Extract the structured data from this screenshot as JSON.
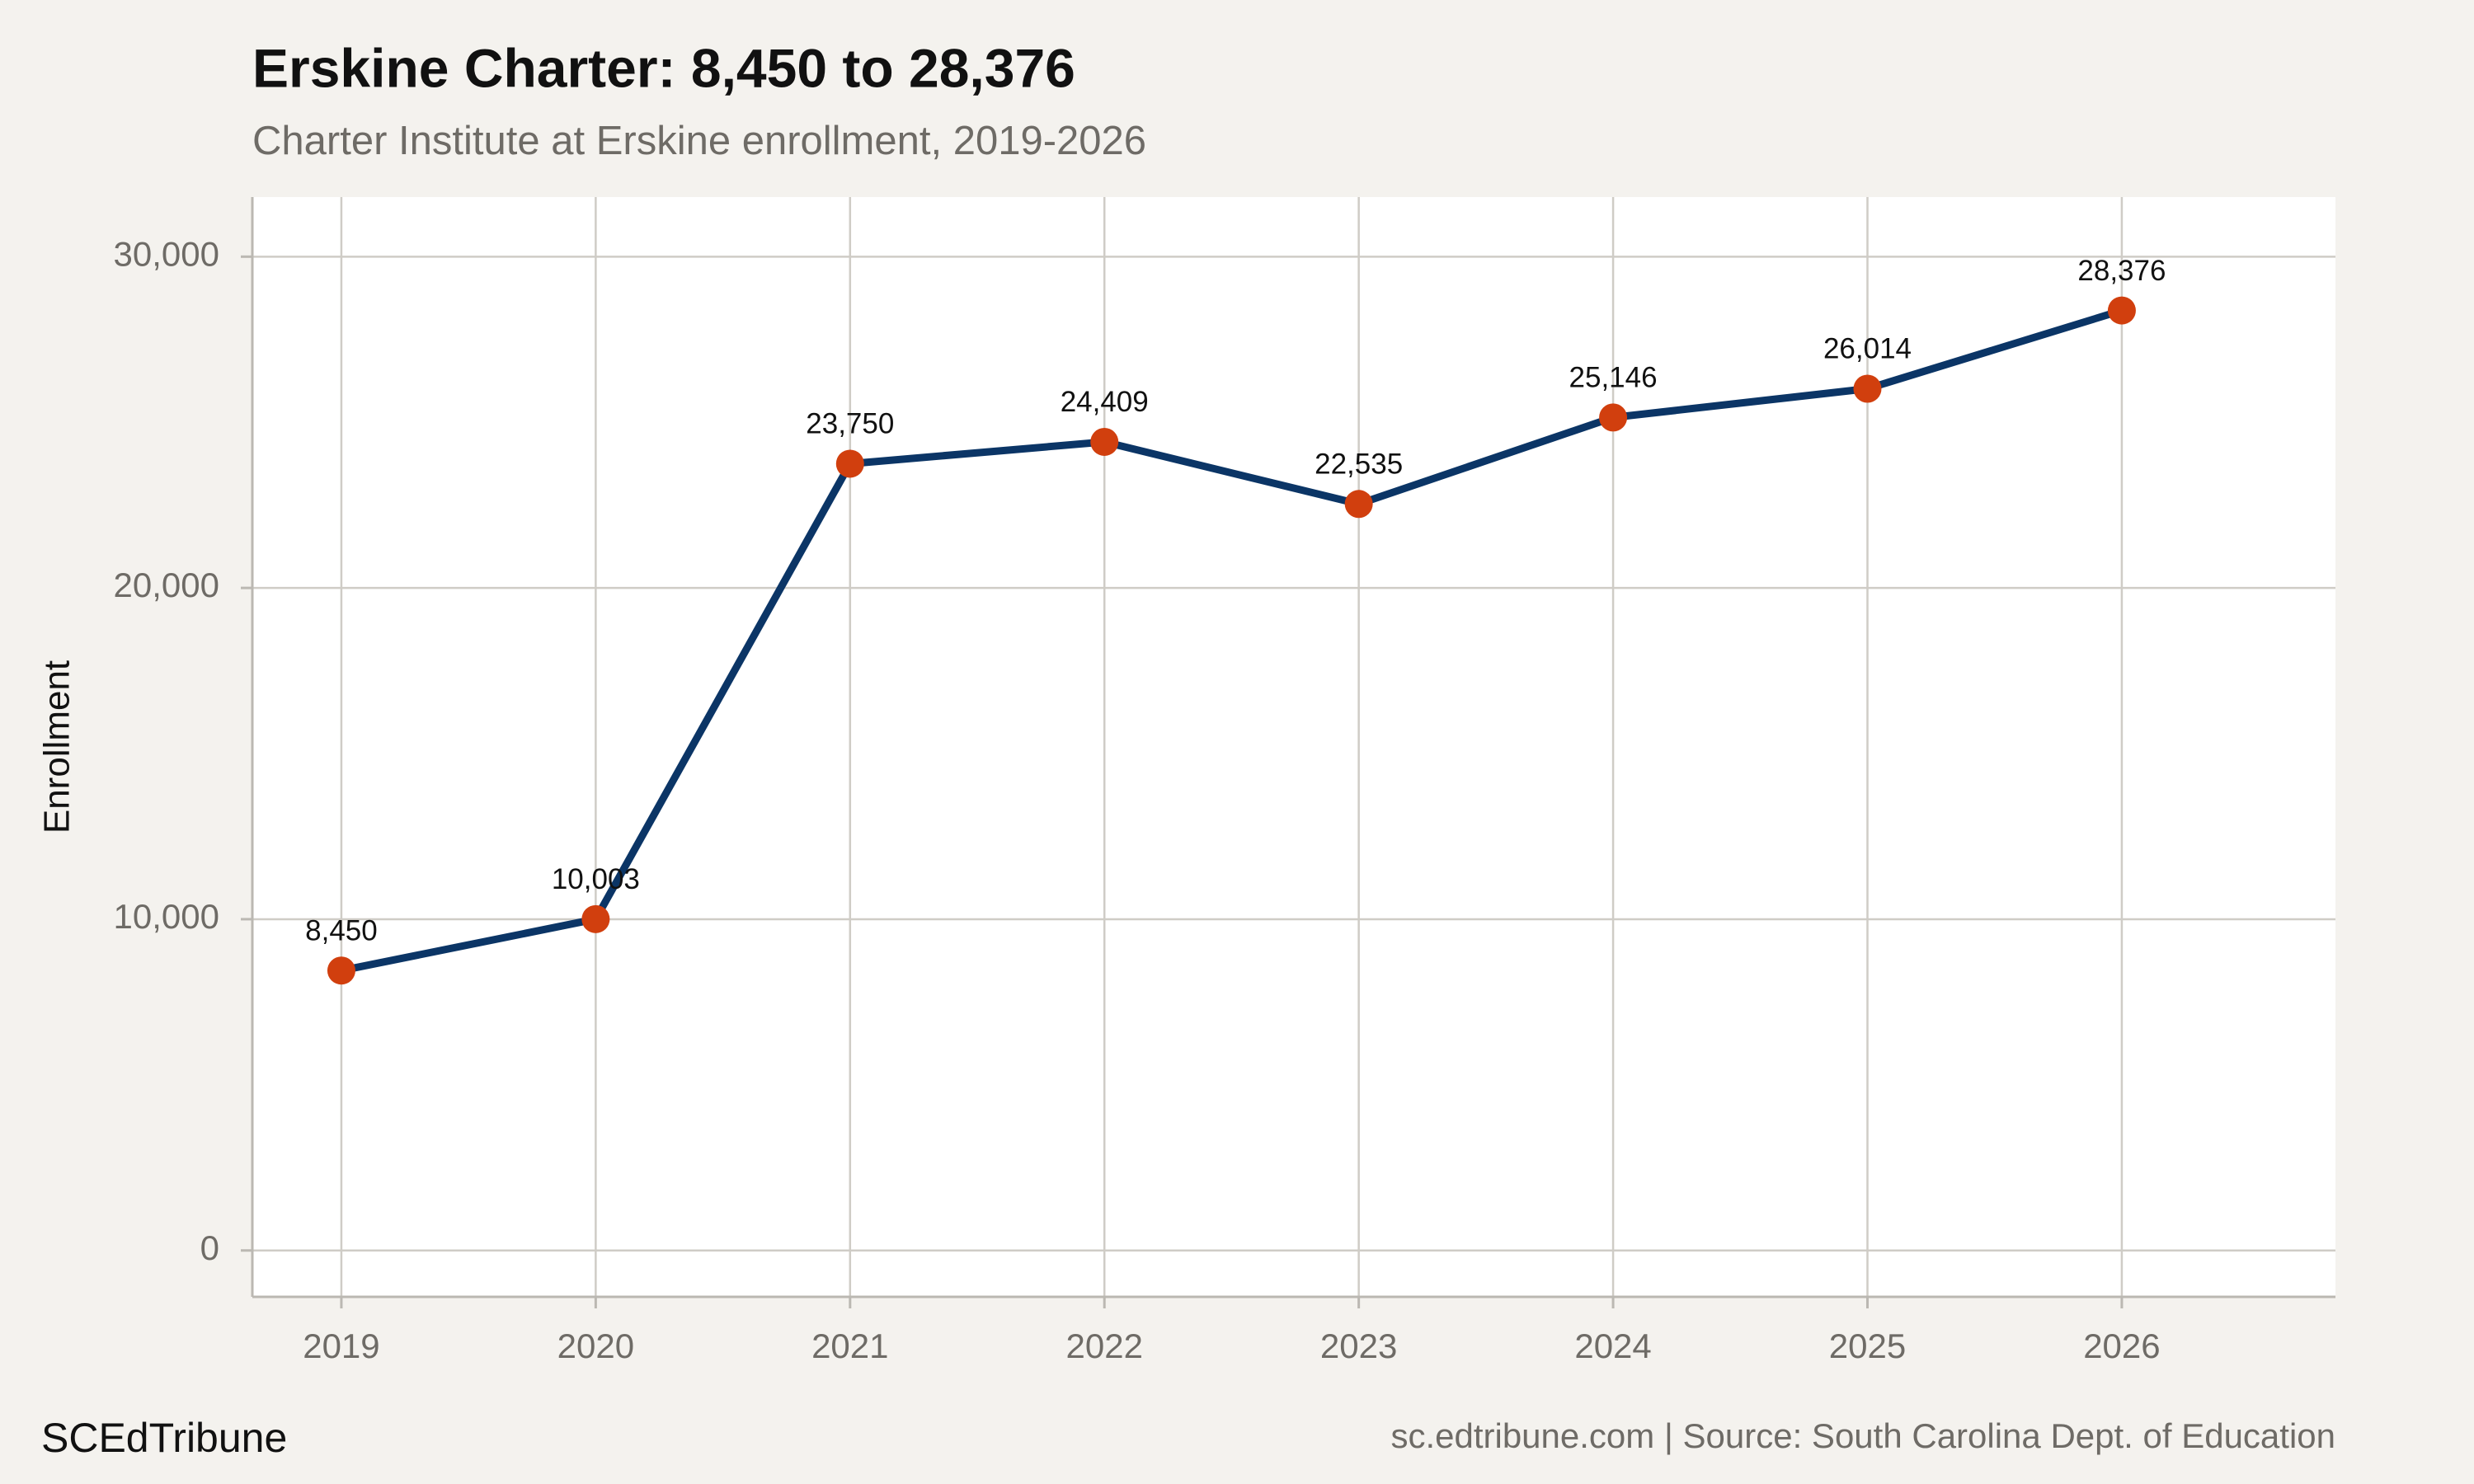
{
  "chart_data": {
    "type": "line",
    "title": "Erskine Charter: 8,450 to 28,376",
    "subtitle": "Charter Institute at Erskine enrollment, 2019-2026",
    "ylabel": "Enrollment",
    "x": [
      2019,
      2020,
      2021,
      2022,
      2023,
      2024,
      2025,
      2026
    ],
    "values": [
      8450,
      10003,
      23750,
      24409,
      22535,
      25146,
      26014,
      28376
    ],
    "value_labels": [
      "8,450",
      "10,003",
      "23,750",
      "24,409",
      "22,535",
      "25,146",
      "26,014",
      "28,376"
    ],
    "color": "#0b3566",
    "marker_color": "#d13f0e",
    "xlim": [
      2018.65,
      2026.84
    ],
    "xticks": [
      2019,
      2020,
      2021,
      2022,
      2023,
      2024,
      2025,
      2026
    ],
    "ylim": [
      -1400,
      31800
    ],
    "yticks": [
      0,
      {
        "value": 10000,
        "label": "10,000"
      },
      {
        "value": 20000,
        "label": "20,000"
      },
      {
        "value": 30000,
        "label": "30,000"
      }
    ],
    "grid": true,
    "brand": "SCEdTribune",
    "source": "sc.edtribune.com | Source: South Carolina Dept. of Education"
  }
}
